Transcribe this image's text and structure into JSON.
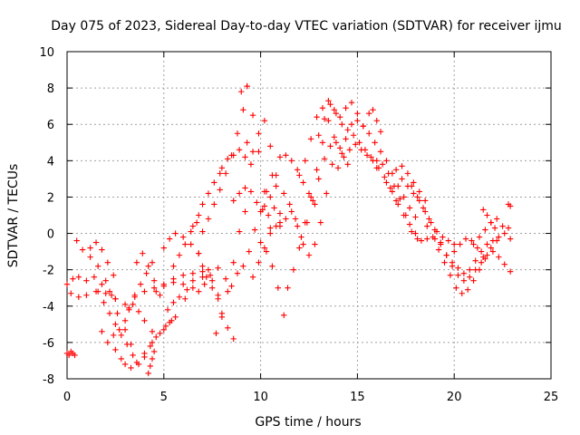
{
  "chart_data": {
    "type": "scatter",
    "title": "Day 075 of 2023, Sidereal Day-to-day VTEC variation (SDTVAR) for receiver ijmu",
    "xlabel": "GPS time / hours",
    "ylabel": "SDTVAR / TECUs",
    "xlim": [
      0,
      25
    ],
    "ylim": [
      -8,
      10
    ],
    "xticks": [
      0,
      5,
      10,
      15,
      20,
      25
    ],
    "yticks": [
      -8,
      -6,
      -4,
      -2,
      0,
      2,
      4,
      6,
      8,
      10
    ],
    "grid": true,
    "marker": "+",
    "color": "#ff0000",
    "series": [
      {
        "x": [
          0.0,
          0.1,
          0.2,
          0.3,
          0.4
        ],
        "y": [
          -6.6,
          -6.7,
          -6.5,
          -6.6,
          -6.7
        ]
      },
      {
        "x": [
          0.0,
          0.3,
          0.6,
          1.0,
          1.4,
          1.8,
          2.2,
          2.5
        ],
        "y": [
          -2.8,
          -2.5,
          -2.4,
          -2.6,
          -2.4,
          -2.8,
          -3.2,
          -3.6
        ]
      },
      {
        "x": [
          0.2,
          0.6,
          1.0,
          1.5,
          2.0,
          2.5,
          3.0,
          3.5,
          4.0,
          4.5,
          5.0,
          5.5,
          6.0,
          6.5,
          7.0
        ],
        "y": [
          -3.3,
          -3.5,
          -3.4,
          -3.2,
          -3.3,
          -3.6,
          -3.9,
          -3.4,
          -3.2,
          -3.0,
          -2.8,
          -2.7,
          -2.8,
          -2.6,
          -2.4
        ]
      },
      {
        "x": [
          0.5,
          0.8,
          1.2,
          1.6,
          2.0,
          2.3,
          2.6,
          3.0,
          3.3
        ],
        "y": [
          -0.4,
          -0.9,
          -1.3,
          -1.8,
          -2.6,
          -3.4,
          -4.4,
          -5.3,
          -6.1
        ]
      },
      {
        "x": [
          1.2,
          1.5,
          1.8,
          2.1,
          2.4
        ],
        "y": [
          -0.8,
          -0.5,
          -0.9,
          -1.6,
          -2.3
        ]
      },
      {
        "x": [
          1.6,
          1.9,
          2.2,
          2.5,
          2.8,
          3.1,
          3.4,
          3.7,
          4.0,
          4.3,
          4.6,
          5.0,
          5.3,
          5.6
        ],
        "y": [
          -3.2,
          -3.8,
          -4.4,
          -5.0,
          -5.6,
          -6.1,
          -6.7,
          -7.2,
          -6.8,
          -6.2,
          -5.7,
          -5.3,
          -4.9,
          -4.6
        ]
      },
      {
        "x": [
          1.8,
          2.1,
          2.4,
          2.7,
          3.0,
          3.2,
          3.4,
          3.7,
          4.0,
          4.4
        ],
        "y": [
          -5.4,
          -6.0,
          -5.6,
          -5.3,
          -4.8,
          -4.2,
          -3.9,
          -4.3,
          -4.8,
          -5.4
        ]
      },
      {
        "x": [
          2.5,
          2.8,
          3.0,
          3.3,
          3.6,
          4.0,
          4.4,
          4.8,
          5.1,
          5.4
        ],
        "y": [
          -6.4,
          -6.9,
          -7.2,
          -7.4,
          -7.1,
          -6.6,
          -6.0,
          -5.5,
          -5.1,
          -4.8
        ]
      },
      {
        "x": [
          3.2,
          3.5,
          3.8,
          4.1,
          4.4
        ],
        "y": [
          -4.1,
          -3.5,
          -2.8,
          -2.2,
          -1.6
        ]
      },
      {
        "x": [
          3.6,
          3.9,
          4.2,
          4.5,
          4.8
        ],
        "y": [
          -1.6,
          -1.1,
          -1.8,
          -2.6,
          -3.4
        ]
      },
      {
        "x": [
          4.2,
          4.3,
          4.4,
          4.5
        ],
        "y": [
          -7.7,
          -7.3,
          -6.9,
          -6.5
        ]
      },
      {
        "x": [
          4.6,
          5.0,
          5.5,
          6.0,
          6.5,
          7.0,
          7.3
        ],
        "y": [
          -3.2,
          -2.9,
          -2.5,
          -2.3,
          -2.2,
          -2.1,
          -2.0
        ]
      },
      {
        "x": [
          5.0,
          5.3,
          5.6,
          6.0,
          6.4,
          6.8
        ],
        "y": [
          -0.8,
          -0.3,
          0.0,
          -0.2,
          -0.6,
          -1.1
        ]
      },
      {
        "x": [
          5.2,
          5.5,
          5.8,
          6.1
        ],
        "y": [
          -4.2,
          -3.8,
          -3.5,
          -3.6
        ]
      },
      {
        "x": [
          5.5,
          5.8,
          6.1,
          6.4,
          6.7
        ],
        "y": [
          -1.8,
          -1.2,
          -0.6,
          0.1,
          0.6
        ]
      },
      {
        "x": [
          6.2,
          6.5,
          6.8,
          7.1,
          7.4,
          7.8,
          8.2,
          8.5,
          8.8,
          9.1,
          9.4,
          9.7,
          10.0,
          10.3,
          10.6
        ],
        "y": [
          -3.1,
          -3.0,
          -3.2,
          -2.8,
          -2.3,
          -1.9,
          -2.5,
          -2.9,
          -2.2,
          -1.8,
          -1.0,
          0.2,
          1.2,
          2.3,
          3.2
        ]
      },
      {
        "x": [
          6.5,
          6.8,
          7.0,
          7.3,
          7.6,
          7.9
        ],
        "y": [
          0.4,
          1.0,
          1.6,
          2.2,
          2.8,
          3.3
        ]
      },
      {
        "x": [
          6.8,
          7.0,
          7.2,
          7.5,
          7.8
        ],
        "y": [
          -1.1,
          -1.8,
          -2.4,
          -3.0,
          -3.6
        ]
      },
      {
        "x": [
          7.0,
          7.3,
          7.6,
          7.9,
          8.2,
          8.5,
          8.8,
          9.1,
          9.3
        ],
        "y": [
          0.1,
          0.8,
          1.6,
          2.4,
          3.3,
          4.3,
          5.5,
          6.8,
          8.1
        ]
      },
      {
        "x": [
          7.5,
          7.8,
          8.0,
          8.3,
          8.6
        ],
        "y": [
          -2.6,
          -3.4,
          -4.4,
          -5.2,
          -5.8
        ]
      },
      {
        "x": [
          7.7,
          8.0,
          8.3,
          8.6,
          8.9,
          9.2
        ],
        "y": [
          -5.5,
          -4.6,
          -3.2,
          -1.6,
          0.1,
          1.2
        ]
      },
      {
        "x": [
          8.0,
          8.3,
          8.6,
          8.9,
          9.2,
          9.5
        ],
        "y": [
          3.6,
          4.1,
          4.3,
          4.6,
          4.2,
          3.8
        ]
      },
      {
        "x": [
          8.6,
          8.9,
          9.2,
          9.5,
          9.8,
          10.1,
          10.4,
          10.7,
          11.0
        ],
        "y": [
          1.8,
          2.2,
          2.5,
          2.3,
          1.7,
          1.3,
          1.0,
          1.4,
          1.1
        ]
      },
      {
        "x": [
          9.0,
          9.3,
          9.6,
          9.9,
          10.2,
          10.5
        ],
        "y": [
          7.8,
          8.1,
          6.5,
          4.5,
          2.3,
          0.3
        ]
      },
      {
        "x": [
          9.3,
          9.6,
          9.9,
          10.2,
          10.5,
          10.8
        ],
        "y": [
          5.0,
          4.5,
          5.5,
          6.2,
          4.8,
          3.2
        ]
      },
      {
        "x": [
          9.6,
          9.9,
          10.2,
          10.5,
          10.8,
          11.0
        ],
        "y": [
          -2.4,
          -1.6,
          -0.8,
          0.0,
          0.4,
          0.6
        ]
      },
      {
        "x": [
          10.0,
          10.3,
          10.6,
          10.9,
          11.2
        ],
        "y": [
          -0.5,
          -1.0,
          -1.8,
          -3.0,
          -4.5
        ]
      },
      {
        "x": [
          10.2,
          10.5,
          10.8,
          11.2,
          11.5,
          11.8,
          12.1
        ],
        "y": [
          1.5,
          2.0,
          2.6,
          2.2,
          1.6,
          0.8,
          -0.2
        ]
      },
      {
        "x": [
          11.0,
          11.3,
          11.6,
          11.9,
          12.2,
          12.5,
          12.8
        ],
        "y": [
          4.2,
          4.3,
          4.0,
          3.5,
          2.8,
          2.2,
          1.6
        ]
      },
      {
        "x": [
          11.0,
          11.3,
          11.6,
          11.9,
          12.2,
          12.5,
          12.8,
          13.1,
          13.4,
          13.7
        ],
        "y": [
          0.4,
          0.8,
          1.2,
          0.4,
          -0.6,
          -1.2,
          -0.6,
          0.6,
          2.2,
          3.8
        ]
      },
      {
        "x": [
          11.4,
          11.7,
          12.0,
          12.3,
          12.6,
          12.9,
          13.2
        ],
        "y": [
          -3.0,
          -2.0,
          -0.8,
          0.6,
          2.0,
          3.5,
          5.0
        ]
      },
      {
        "x": [
          12.0,
          12.3,
          12.6,
          12.9,
          13.2,
          13.5,
          13.8,
          14.1,
          14.4,
          14.7
        ],
        "y": [
          3.2,
          4.0,
          5.2,
          6.4,
          6.9,
          6.2,
          5.3,
          4.7,
          5.2,
          6.0
        ]
      },
      {
        "x": [
          12.4,
          12.7,
          13.0,
          13.3,
          13.6,
          13.9,
          14.2,
          14.5
        ],
        "y": [
          0.6,
          1.8,
          3.0,
          4.1,
          4.8,
          5.0,
          4.4,
          3.8
        ]
      },
      {
        "x": [
          13.0,
          13.3,
          13.6,
          13.9,
          14.2,
          14.5,
          14.8,
          15.1,
          15.4,
          15.7,
          16.0
        ],
        "y": [
          5.4,
          6.3,
          7.1,
          6.6,
          6.0,
          5.7,
          5.4,
          5.0,
          4.6,
          4.2,
          4.0
        ]
      },
      {
        "x": [
          13.5,
          13.8,
          14.1,
          14.4,
          14.7,
          15.0,
          15.3
        ],
        "y": [
          7.3,
          6.8,
          6.4,
          6.9,
          7.2,
          6.6,
          5.9
        ]
      },
      {
        "x": [
          14.0,
          14.3,
          14.6,
          14.9,
          15.2,
          15.5,
          15.8,
          16.1,
          16.4,
          16.7,
          17.0
        ],
        "y": [
          3.6,
          4.2,
          4.6,
          4.9,
          4.6,
          4.3,
          4.0,
          3.6,
          3.1,
          2.5,
          1.8
        ]
      },
      {
        "x": [
          15.0,
          15.3,
          15.6,
          15.9,
          16.2,
          16.5,
          16.8,
          17.1,
          17.4,
          17.7,
          18.0
        ],
        "y": [
          6.2,
          5.9,
          5.5,
          5.0,
          4.5,
          4.0,
          3.3,
          2.6,
          2.0,
          1.4,
          0.9
        ]
      },
      {
        "x": [
          15.6,
          15.8,
          16.0,
          16.2
        ],
        "y": [
          6.6,
          6.8,
          6.2,
          5.6
        ]
      },
      {
        "x": [
          16.0,
          16.3,
          16.6,
          16.9,
          17.2,
          17.5,
          17.8,
          18.1
        ],
        "y": [
          3.6,
          3.8,
          3.3,
          2.6,
          1.9,
          1.0,
          0.1,
          -0.3
        ]
      },
      {
        "x": [
          16.5,
          16.8,
          17.1,
          17.4,
          17.7,
          18.0,
          18.3,
          18.6
        ],
        "y": [
          2.8,
          2.3,
          1.6,
          1.0,
          0.5,
          0.0,
          -0.4,
          -0.3
        ]
      },
      {
        "x": [
          17.0,
          17.3,
          17.6,
          17.9,
          18.2,
          18.5
        ],
        "y": [
          3.5,
          3.7,
          3.3,
          2.8,
          2.3,
          1.8
        ]
      },
      {
        "x": [
          17.3,
          17.6,
          17.9,
          18.2,
          18.5,
          18.8,
          19.1,
          19.4,
          19.7,
          20.0
        ],
        "y": [
          3.0,
          2.6,
          2.2,
          1.8,
          1.2,
          0.6,
          0.1,
          -0.2,
          -0.4,
          -0.6
        ]
      },
      {
        "x": [
          17.8,
          18.1,
          18.4,
          18.7,
          19.0,
          19.3,
          19.6,
          19.9,
          20.2,
          20.5,
          20.8,
          21.1,
          21.4,
          21.7,
          22.0,
          22.3,
          22.6,
          22.9
        ],
        "y": [
          2.6,
          2.0,
          1.4,
          0.8,
          0.2,
          -0.5,
          -1.2,
          -1.8,
          -2.3,
          -2.6,
          -2.4,
          -2.0,
          -1.6,
          -1.2,
          -1.0,
          -1.3,
          -1.7,
          -2.1
        ]
      },
      {
        "x": [
          18.6,
          18.9,
          19.2,
          19.5,
          19.8,
          20.1,
          20.4,
          20.7,
          21.0,
          21.3,
          21.6,
          21.9,
          22.2
        ],
        "y": [
          0.4,
          -0.2,
          -0.9,
          -1.6,
          -2.3,
          -3.0,
          -3.3,
          -3.1,
          -2.6,
          -2.0,
          -1.4,
          -0.8,
          -0.4
        ]
      },
      {
        "x": [
          19.0,
          19.3,
          19.6,
          19.9,
          20.2,
          20.5,
          20.8,
          21.1,
          21.4,
          21.7,
          22.0,
          22.3,
          22.6,
          22.9
        ],
        "y": [
          -0.3,
          -0.6,
          -1.2,
          -1.6,
          -1.9,
          -2.2,
          -2.0,
          -1.5,
          -1.0,
          -0.6,
          -0.4,
          -0.2,
          0.0,
          -0.3
        ]
      },
      {
        "x": [
          20.0,
          20.3,
          20.6,
          20.9,
          21.2,
          21.5
        ],
        "y": [
          -1.0,
          -0.6,
          -0.3,
          -0.4,
          -0.8,
          -1.3
        ]
      },
      {
        "x": [
          21.0,
          21.3,
          21.6,
          21.9,
          22.2,
          22.5,
          22.8
        ],
        "y": [
          -0.6,
          -0.2,
          0.2,
          0.6,
          0.8,
          0.4,
          0.3
        ]
      },
      {
        "x": [
          21.5,
          21.7,
          21.9,
          22.1
        ],
        "y": [
          1.3,
          1.0,
          0.6,
          0.3
        ]
      },
      {
        "x": [
          22.8,
          22.9
        ],
        "y": [
          1.6,
          1.5
        ]
      }
    ]
  }
}
